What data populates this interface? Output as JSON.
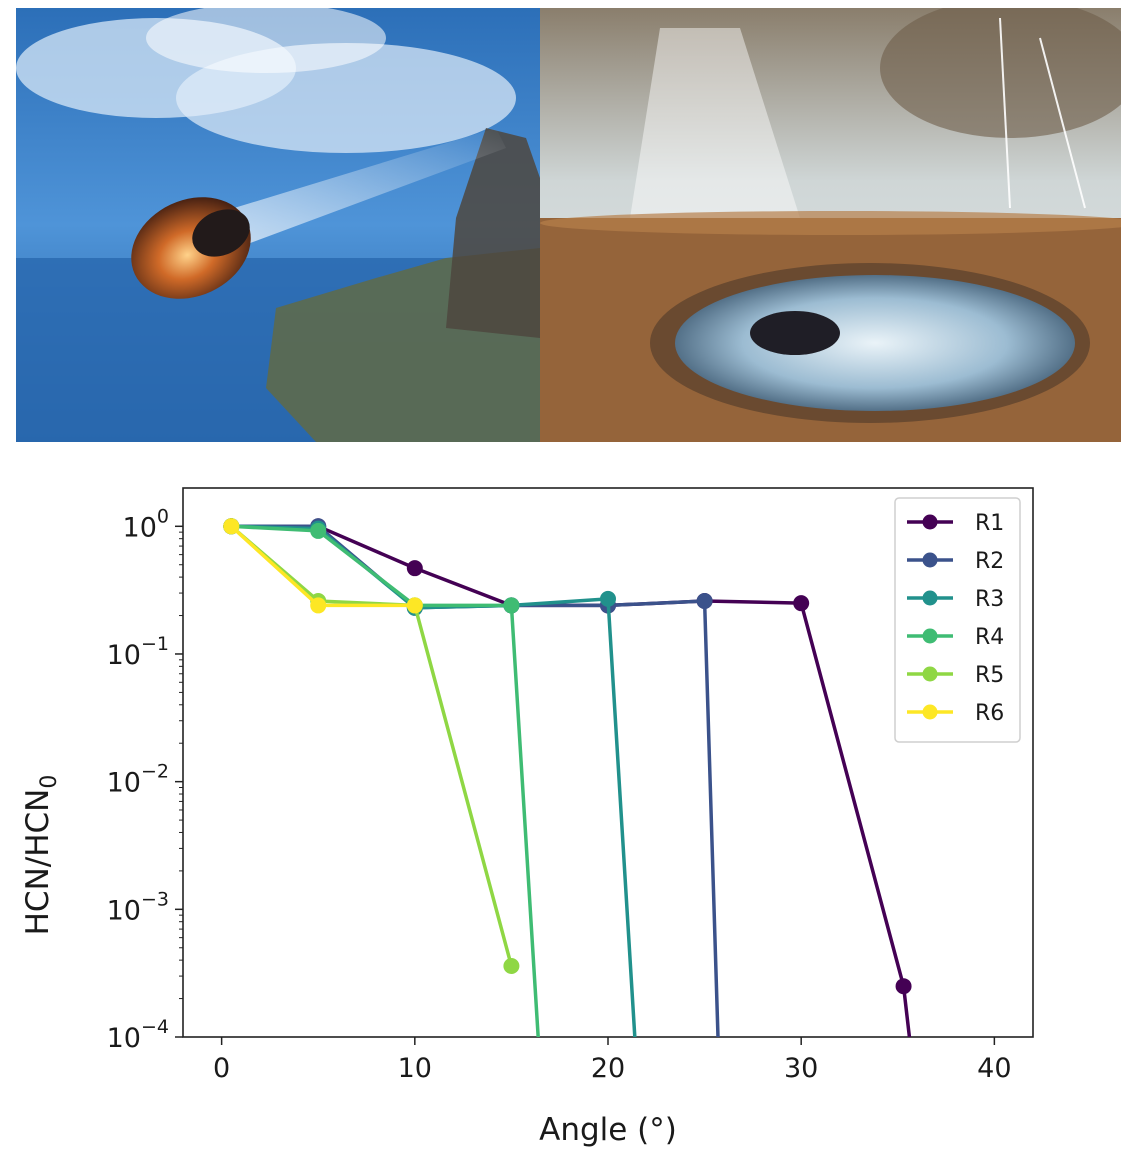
{
  "images": [
    {
      "name": "asteroid-impact-painting",
      "description_colors": {
        "sky": "#3a7fc8",
        "ocean": "#2f6fb3",
        "fireball": "#c8602a",
        "land": "#6b6a4a"
      }
    },
    {
      "name": "impact-crater-pond-painting",
      "description_colors": {
        "sky": "#c9c3b4",
        "ground": "#9c6a3c",
        "water": "#b8d2e0",
        "rock": "#2a2a30"
      }
    }
  ],
  "chart_data": {
    "type": "line",
    "title": "",
    "xlabel": "Angle (°)",
    "ylabel": "HCN/HCN0",
    "ylabel_main": "HCN/HCN",
    "ylabel_sub": "0",
    "xlim": [
      -2,
      42
    ],
    "ylim_log10": [
      -4,
      0.3
    ],
    "yscale": "log",
    "x_ticks": [
      0,
      10,
      20,
      30,
      40
    ],
    "y_ticks": [
      {
        "base": "10",
        "exp": "0",
        "value": 1
      },
      {
        "base": "10",
        "exp": "−1",
        "value": 0.1
      },
      {
        "base": "10",
        "exp": "−2",
        "value": 0.01
      },
      {
        "base": "10",
        "exp": "−3",
        "value": 0.001
      },
      {
        "base": "10",
        "exp": "−4",
        "value": 0.0001
      }
    ],
    "legend_position": "top-right",
    "series": [
      {
        "name": "R1",
        "color": "#440154",
        "x": [
          0.5,
          5,
          10,
          15,
          20,
          25,
          30,
          35.3,
          36
        ],
        "y": [
          1.0,
          1.0,
          0.47,
          0.24,
          0.24,
          0.26,
          0.25,
          0.00025,
          3e-05
        ]
      },
      {
        "name": "R2",
        "color": "#3b528b",
        "x": [
          0.5,
          5,
          10,
          15,
          20,
          25,
          25.8
        ],
        "y": [
          1.0,
          1.0,
          0.23,
          0.24,
          0.24,
          0.26,
          3e-05
        ]
      },
      {
        "name": "R3",
        "color": "#21918c",
        "x": [
          0.5,
          5,
          10,
          15,
          20,
          21.6
        ],
        "y": [
          1.0,
          0.96,
          0.23,
          0.24,
          0.27,
          3e-05
        ]
      },
      {
        "name": "R4",
        "color": "#3fbc73",
        "x": [
          0.5,
          5,
          10,
          15,
          16.6
        ],
        "y": [
          1.0,
          0.92,
          0.24,
          0.24,
          3e-05
        ]
      },
      {
        "name": "R5",
        "color": "#8fd744",
        "x": [
          0.5,
          5,
          10,
          15
        ],
        "y": [
          1.0,
          0.26,
          0.24,
          0.00036
        ]
      },
      {
        "name": "R6",
        "color": "#fde725",
        "x": [
          0.5,
          5,
          10
        ],
        "y": [
          1.0,
          0.24,
          0.24
        ]
      }
    ],
    "markers_x_limit_note": "markers drawn only where points fall inside the axes"
  }
}
